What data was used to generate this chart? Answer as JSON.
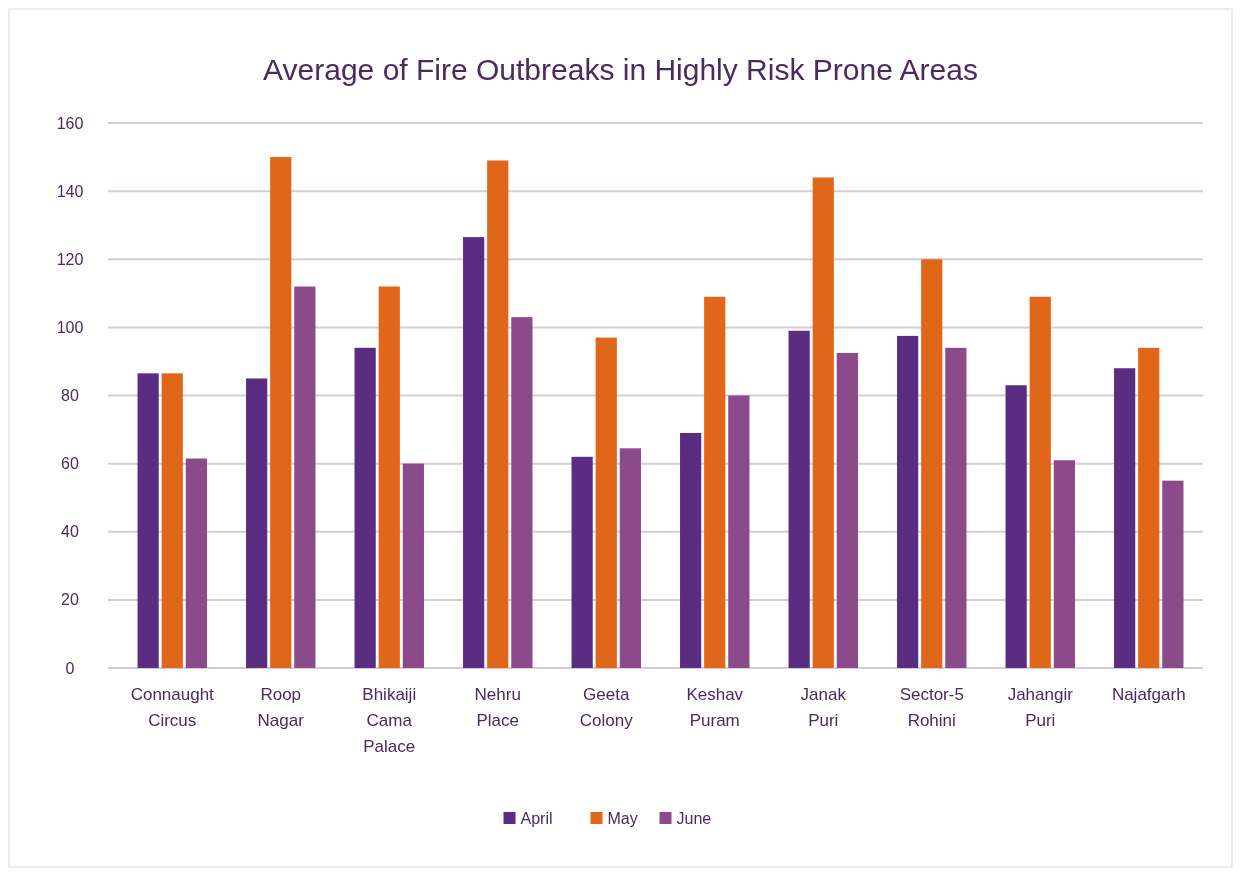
{
  "chart_data": {
    "type": "bar",
    "title": "Average of Fire Outbreaks in Highly Risk Prone Areas",
    "categories": [
      "Connaught Circus",
      "Roop Nagar",
      "Bhikaiji Cama Palace",
      "Nehru Place",
      "Geeta Colony",
      "Keshav Puram",
      "Janak Puri",
      "Sector-5 Rohini",
      "Jahangir Puri",
      "Najafgarh"
    ],
    "series": [
      {
        "name": "April",
        "color": "#5b2d82",
        "values": [
          86.5,
          85,
          94,
          126.5,
          62,
          69,
          99,
          97.5,
          83,
          88
        ]
      },
      {
        "name": "May",
        "color": "#e0661a",
        "values": [
          86.5,
          150,
          112,
          149,
          97,
          109,
          144,
          120,
          109,
          94
        ]
      },
      {
        "name": "June",
        "color": "#8b4a8a",
        "values": [
          61.5,
          112,
          60,
          103,
          64.5,
          80,
          92.5,
          94,
          61,
          55
        ]
      }
    ],
    "ylim": [
      0,
      160
    ],
    "yticks": [
      0,
      20,
      40,
      60,
      80,
      100,
      120,
      140,
      160
    ],
    "grid": "y",
    "legend": "bottom"
  }
}
